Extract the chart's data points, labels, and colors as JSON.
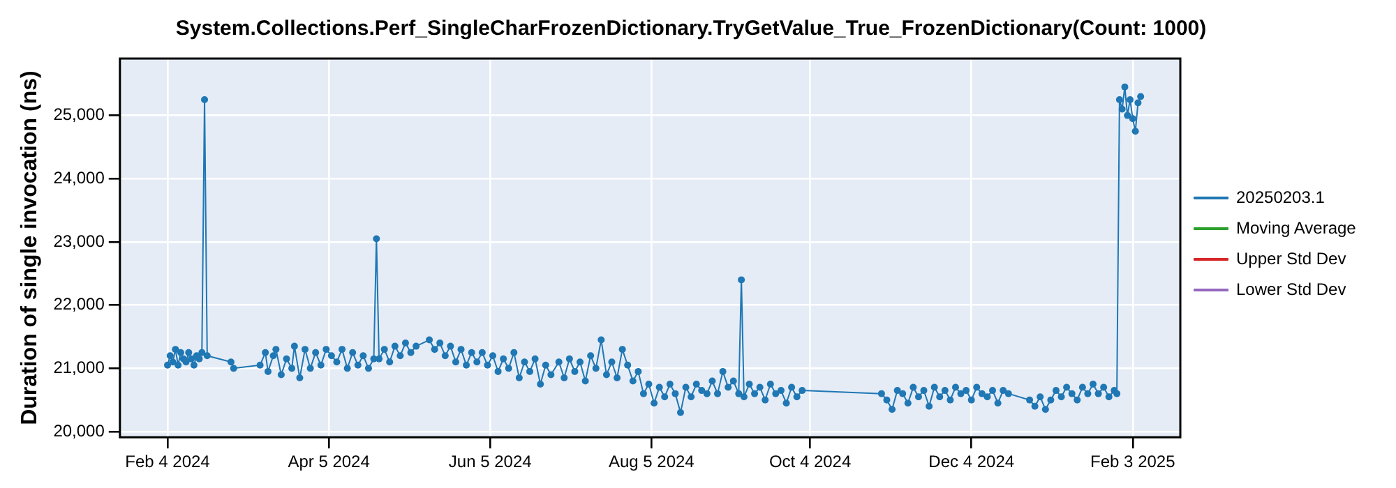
{
  "chart_data": {
    "type": "line",
    "title": "System.Collections.Perf_SingleCharFrozenDictionary.TryGetValue_True_FrozenDictionary(Count: 1000)",
    "ylabel": "Duration of single invocation (ns)",
    "x": [
      "2024-02-04",
      "2024-02-05",
      "2024-02-06",
      "2024-02-07",
      "2024-02-08",
      "2024-02-09",
      "2024-02-10",
      "2024-02-11",
      "2024-02-12",
      "2024-02-13",
      "2024-02-14",
      "2024-02-15",
      "2024-02-16",
      "2024-02-17",
      "2024-02-18",
      "2024-02-19",
      "2024-02-28",
      "2024-02-29",
      "2024-03-10",
      "2024-03-12",
      "2024-03-13",
      "2024-03-15",
      "2024-03-16",
      "2024-03-18",
      "2024-03-20",
      "2024-03-22",
      "2024-03-23",
      "2024-03-25",
      "2024-03-27",
      "2024-03-29",
      "2024-03-31",
      "2024-04-02",
      "2024-04-04",
      "2024-04-06",
      "2024-04-08",
      "2024-04-10",
      "2024-04-12",
      "2024-04-14",
      "2024-04-16",
      "2024-04-18",
      "2024-04-20",
      "2024-04-22",
      "2024-04-23",
      "2024-04-24",
      "2024-04-26",
      "2024-04-28",
      "2024-04-30",
      "2024-05-02",
      "2024-05-04",
      "2024-05-06",
      "2024-05-08",
      "2024-05-13",
      "2024-05-15",
      "2024-05-17",
      "2024-05-19",
      "2024-05-21",
      "2024-05-23",
      "2024-05-25",
      "2024-05-27",
      "2024-05-29",
      "2024-05-31",
      "2024-06-02",
      "2024-06-04",
      "2024-06-06",
      "2024-06-08",
      "2024-06-10",
      "2024-06-12",
      "2024-06-14",
      "2024-06-16",
      "2024-06-18",
      "2024-06-20",
      "2024-06-22",
      "2024-06-24",
      "2024-06-26",
      "2024-06-28",
      "2024-07-01",
      "2024-07-03",
      "2024-07-05",
      "2024-07-07",
      "2024-07-09",
      "2024-07-11",
      "2024-07-13",
      "2024-07-15",
      "2024-07-17",
      "2024-07-19",
      "2024-07-21",
      "2024-07-23",
      "2024-07-25",
      "2024-07-27",
      "2024-07-29",
      "2024-07-31",
      "2024-08-02",
      "2024-08-04",
      "2024-08-06",
      "2024-08-08",
      "2024-08-10",
      "2024-08-12",
      "2024-08-14",
      "2024-08-16",
      "2024-08-18",
      "2024-08-20",
      "2024-08-22",
      "2024-08-24",
      "2024-08-26",
      "2024-08-28",
      "2024-08-30",
      "2024-09-01",
      "2024-09-03",
      "2024-09-05",
      "2024-09-07",
      "2024-09-08",
      "2024-09-09",
      "2024-09-11",
      "2024-09-13",
      "2024-09-15",
      "2024-09-17",
      "2024-09-19",
      "2024-09-21",
      "2024-09-23",
      "2024-09-25",
      "2024-09-27",
      "2024-09-29",
      "2024-10-01",
      "2024-10-31",
      "2024-11-02",
      "2024-11-04",
      "2024-11-06",
      "2024-11-08",
      "2024-11-10",
      "2024-11-12",
      "2024-11-14",
      "2024-11-16",
      "2024-11-18",
      "2024-11-20",
      "2024-11-22",
      "2024-11-24",
      "2024-11-26",
      "2024-11-28",
      "2024-11-30",
      "2024-12-02",
      "2024-12-04",
      "2024-12-06",
      "2024-12-08",
      "2024-12-10",
      "2024-12-12",
      "2024-12-14",
      "2024-12-16",
      "2024-12-18",
      "2024-12-26",
      "2024-12-28",
      "2024-12-30",
      "2025-01-01",
      "2025-01-03",
      "2025-01-05",
      "2025-01-07",
      "2025-01-09",
      "2025-01-11",
      "2025-01-13",
      "2025-01-15",
      "2025-01-17",
      "2025-01-19",
      "2025-01-21",
      "2025-01-23",
      "2025-01-25",
      "2025-01-27",
      "2025-01-28",
      "2025-01-29",
      "2025-01-30",
      "2025-01-31",
      "2025-02-01",
      "2025-02-02",
      "2025-02-03",
      "2025-02-04",
      "2025-02-05",
      "2025-02-06"
    ],
    "series": [
      {
        "name": "20250203.1",
        "color": "#1f77b4",
        "values": [
          21050,
          21200,
          21100,
          21300,
          21050,
          21250,
          21150,
          21100,
          21250,
          21150,
          21050,
          21200,
          21150,
          21250,
          25250,
          21200,
          21100,
          21000,
          21050,
          21250,
          20950,
          21200,
          21300,
          20900,
          21150,
          21000,
          21350,
          20850,
          21300,
          21000,
          21250,
          21050,
          21300,
          21200,
          21100,
          21300,
          21000,
          21250,
          21050,
          21200,
          21000,
          21150,
          23050,
          21150,
          21300,
          21100,
          21350,
          21200,
          21400,
          21250,
          21350,
          21450,
          21300,
          21400,
          21200,
          21350,
          21100,
          21300,
          21050,
          21250,
          21100,
          21250,
          21050,
          21200,
          20950,
          21150,
          21000,
          21250,
          20850,
          21100,
          20950,
          21150,
          20750,
          21050,
          20900,
          21100,
          20850,
          21150,
          20950,
          21100,
          20800,
          21200,
          21000,
          21450,
          20900,
          21100,
          20850,
          21300,
          21050,
          20800,
          20950,
          20600,
          20750,
          20450,
          20700,
          20550,
          20750,
          20600,
          20300,
          20700,
          20550,
          20750,
          20650,
          20600,
          20800,
          20600,
          20950,
          20700,
          20800,
          20600,
          22400,
          20550,
          20750,
          20600,
          20700,
          20500,
          20750,
          20600,
          20650,
          20450,
          20700,
          20550,
          20650,
          20600,
          20500,
          20350,
          20650,
          20600,
          20450,
          20700,
          20550,
          20650,
          20400,
          20700,
          20550,
          20650,
          20500,
          20700,
          20600,
          20650,
          20500,
          20700,
          20600,
          20550,
          20650,
          20450,
          20650,
          20600,
          20500,
          20400,
          20550,
          20350,
          20500,
          20650,
          20550,
          20700,
          20600,
          20500,
          20700,
          20600,
          20750,
          20600,
          20700,
          20550,
          20650,
          20600,
          25250,
          25100,
          25450,
          25000,
          25250,
          24950,
          24750,
          25200,
          25300
        ]
      },
      {
        "name": "Moving Average",
        "color": "#2ca02c",
        "values": [
          null,
          null,
          null,
          null,
          null,
          null,
          null,
          null,
          null,
          null,
          null,
          null,
          null,
          null,
          null,
          null,
          null,
          null,
          null,
          null,
          null,
          null,
          null,
          null,
          null,
          null,
          null,
          null,
          null,
          null,
          null,
          null,
          null,
          null,
          null,
          null,
          null,
          null,
          null,
          null,
          null,
          null,
          null,
          null,
          null,
          null,
          null,
          null,
          null,
          null,
          null,
          null,
          null,
          null,
          null,
          null,
          null,
          null,
          null,
          null,
          null,
          null,
          null,
          null,
          null,
          null,
          null,
          null,
          null,
          null,
          null,
          null,
          null,
          null,
          null,
          null,
          null,
          null,
          null,
          null,
          null,
          null,
          null,
          null,
          null,
          null,
          null,
          null,
          null,
          null,
          null,
          null,
          null,
          null,
          null,
          null,
          null,
          null,
          null,
          null,
          null,
          null,
          null,
          null,
          null,
          null,
          null,
          null,
          null,
          null,
          null,
          null,
          null,
          null,
          null,
          null,
          null,
          null,
          null,
          null,
          null,
          null,
          null,
          null,
          null,
          null,
          null,
          null,
          null,
          null,
          null,
          null,
          null,
          null,
          null,
          null,
          null,
          null,
          null,
          null,
          null,
          null,
          null,
          null,
          null,
          null,
          null,
          null,
          null,
          null,
          null,
          null,
          null,
          null,
          null,
          null,
          null,
          null,
          null,
          null,
          null,
          null,
          null,
          null,
          null,
          null,
          null,
          null,
          null,
          null,
          null,
          null,
          null,
          null,
          null
        ]
      },
      {
        "name": "Upper Std Dev",
        "color": "#d62728",
        "values": [
          null,
          null,
          null,
          null,
          null,
          null,
          null,
          null,
          null,
          null,
          null,
          null,
          null,
          null,
          null,
          null,
          null,
          null,
          null,
          null,
          null,
          null,
          null,
          null,
          null,
          null,
          null,
          null,
          null,
          null,
          null,
          null,
          null,
          null,
          null,
          null,
          null,
          null,
          null,
          null,
          null,
          null,
          null,
          null,
          null,
          null,
          null,
          null,
          null,
          null,
          null,
          null,
          null,
          null,
          null,
          null,
          null,
          null,
          null,
          null,
          null,
          null,
          null,
          null,
          null,
          null,
          null,
          null,
          null,
          null,
          null,
          null,
          null,
          null,
          null,
          null,
          null,
          null,
          null,
          null,
          null,
          null,
          null,
          null,
          null,
          null,
          null,
          null,
          null,
          null,
          null,
          null,
          null,
          null,
          null,
          null,
          null,
          null,
          null,
          null,
          null,
          null,
          null,
          null,
          null,
          null,
          null,
          null,
          null,
          null,
          null,
          null,
          null,
          null,
          null,
          null,
          null,
          null,
          null,
          null,
          null,
          null,
          null,
          null,
          null,
          null,
          null,
          null,
          null,
          null,
          null,
          null,
          null,
          null,
          null,
          null,
          null,
          null,
          null,
          null,
          null,
          null,
          null,
          null,
          null,
          null,
          null,
          null,
          null,
          null,
          null,
          null,
          null,
          null,
          null,
          null,
          null,
          null,
          null,
          null,
          null,
          null,
          null,
          null,
          null,
          null,
          null,
          null,
          null,
          null,
          null,
          null,
          null,
          null,
          null
        ]
      },
      {
        "name": "Lower Std Dev",
        "color": "#9467bd",
        "values": [
          null,
          null,
          null,
          null,
          null,
          null,
          null,
          null,
          null,
          null,
          null,
          null,
          null,
          null,
          null,
          null,
          null,
          null,
          null,
          null,
          null,
          null,
          null,
          null,
          null,
          null,
          null,
          null,
          null,
          null,
          null,
          null,
          null,
          null,
          null,
          null,
          null,
          null,
          null,
          null,
          null,
          null,
          null,
          null,
          null,
          null,
          null,
          null,
          null,
          null,
          null,
          null,
          null,
          null,
          null,
          null,
          null,
          null,
          null,
          null,
          null,
          null,
          null,
          null,
          null,
          null,
          null,
          null,
          null,
          null,
          null,
          null,
          null,
          null,
          null,
          null,
          null,
          null,
          null,
          null,
          null,
          null,
          null,
          null,
          null,
          null,
          null,
          null,
          null,
          null,
          null,
          null,
          null,
          null,
          null,
          null,
          null,
          null,
          null,
          null,
          null,
          null,
          null,
          null,
          null,
          null,
          null,
          null,
          null,
          null,
          null,
          null,
          null,
          null,
          null,
          null,
          null,
          null,
          null,
          null,
          null,
          null,
          null,
          null,
          null,
          null,
          null,
          null,
          null,
          null,
          null,
          null,
          null,
          null,
          null,
          null,
          null,
          null,
          null,
          null,
          null,
          null,
          null,
          null,
          null,
          null,
          null,
          null,
          null,
          null,
          null,
          null,
          null,
          null,
          null,
          null,
          null,
          null,
          null,
          null,
          null,
          null,
          null,
          null,
          null,
          null,
          null,
          null,
          null,
          null,
          null,
          null,
          null,
          null,
          null
        ]
      }
    ],
    "xlim": [
      "2024-01-17",
      "2025-02-21"
    ],
    "xticks": [
      {
        "value": "2024-02-04",
        "label": "Feb 4 2024"
      },
      {
        "value": "2024-04-05",
        "label": "Apr 5 2024"
      },
      {
        "value": "2024-06-05",
        "label": "Jun 5 2024"
      },
      {
        "value": "2024-08-05",
        "label": "Aug 5 2024"
      },
      {
        "value": "2024-10-04",
        "label": "Oct 4 2024"
      },
      {
        "value": "2024-12-04",
        "label": "Dec 4 2024"
      },
      {
        "value": "2025-02-03",
        "label": "Feb 3 2025"
      }
    ],
    "ylim": [
      19910,
      25900
    ],
    "yticks": [
      {
        "value": 20000,
        "label": "20,000"
      },
      {
        "value": 21000,
        "label": "21,000"
      },
      {
        "value": 22000,
        "label": "22,000"
      },
      {
        "value": 23000,
        "label": "23,000"
      },
      {
        "value": 24000,
        "label": "24,000"
      },
      {
        "value": 25000,
        "label": "25,000"
      }
    ],
    "grid": true,
    "legend": "right",
    "marker": "circle",
    "line_style": "solid"
  }
}
